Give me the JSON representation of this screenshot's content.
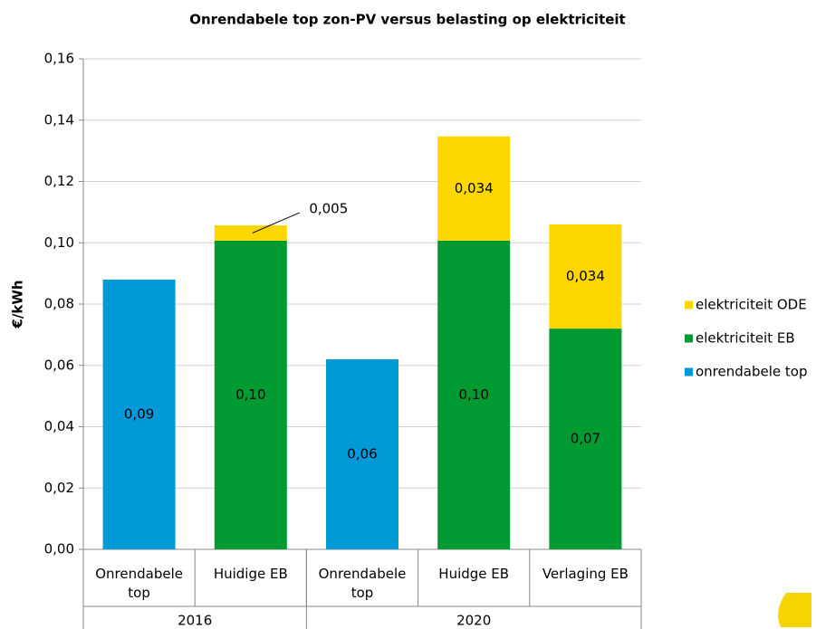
{
  "chart_data": {
    "type": "bar",
    "stacked": true,
    "title": "Onrendabele top  zon-PV versus belasting op elektriciteit",
    "y_label": "€/kWh",
    "categories": [
      "Onrendabele top",
      "Huidige EB",
      "Onrendabele top",
      "Huidge EB",
      "Verlaging EB"
    ],
    "groups": [
      {
        "label": "2016",
        "span": 2
      },
      {
        "label": "2020",
        "span": 3
      }
    ],
    "series": [
      {
        "name": "onrendabele top",
        "color": "#0099d8",
        "values": [
          0.088,
          null,
          0.062,
          null,
          null
        ],
        "value_labels": [
          "0,09",
          null,
          "0,06",
          null,
          null
        ]
      },
      {
        "name": "elektriciteit EB",
        "color": "#009a33",
        "values": [
          null,
          0.1007,
          null,
          0.1007,
          0.072
        ],
        "value_labels": [
          null,
          "0,10",
          null,
          "0,10",
          "0,07"
        ]
      },
      {
        "name": "elektriciteit ODE",
        "color": "#ffd700",
        "values": [
          null,
          0.005,
          null,
          0.034,
          0.034
        ],
        "value_labels": [
          null,
          "0,005",
          null,
          "0,034",
          "0,034"
        ]
      }
    ],
    "ylim": [
      0,
      0.16
    ],
    "yticks": [
      {
        "value": 0,
        "label": "0,00"
      },
      {
        "value": 0.02,
        "label": "0,02"
      },
      {
        "value": 0.04,
        "label": "0,04"
      },
      {
        "value": 0.06,
        "label": "0,06"
      },
      {
        "value": 0.08,
        "label": "0,08"
      },
      {
        "value": 0.1,
        "label": "0,10"
      },
      {
        "value": 0.12,
        "label": "0,12"
      },
      {
        "value": 0.14,
        "label": "0,14"
      },
      {
        "value": 0.16,
        "label": "0,16"
      }
    ],
    "grid": true,
    "legend": "right"
  }
}
